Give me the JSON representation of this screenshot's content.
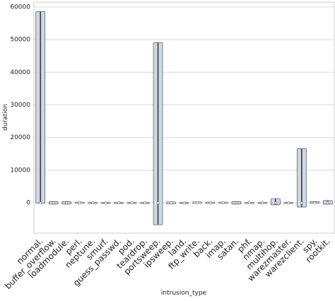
{
  "chart_data": {
    "type": "violin",
    "xlabel": "intrusion_type",
    "ylabel": "duration",
    "categories": [
      "normal.",
      "buffer_overflow.",
      "loadmodule.",
      "perl.",
      "neptune.",
      "smurf.",
      "guess_passwd.",
      "pod.",
      "teardrop.",
      "portsweep.",
      "ipsweep.",
      "land.",
      "ftp_write.",
      "back.",
      "imap.",
      "satan.",
      "phf.",
      "nmap.",
      "multihop.",
      "warezmaster.",
      "warezclient.",
      "spy.",
      "rootkit."
    ],
    "min": [
      0,
      -300,
      -300,
      -100,
      0,
      0,
      0,
      0,
      0,
      -6600,
      -200,
      0,
      -100,
      -100,
      -100,
      -300,
      0,
      0,
      -500,
      0,
      -1200,
      0,
      -300
    ],
    "max": [
      58500,
      300,
      300,
      100,
      0,
      0,
      0,
      0,
      0,
      49000,
      200,
      0,
      200,
      100,
      100,
      300,
      0,
      0,
      1200,
      0,
      16500,
      300,
      600
    ],
    "median": [
      0,
      0,
      0,
      0,
      0,
      0,
      0,
      0,
      0,
      0,
      0,
      0,
      0,
      0,
      0,
      0,
      0,
      0,
      0,
      0,
      0,
      0,
      0
    ],
    "color": "#3a3a3a",
    "ylim": [
      -9300,
      61500
    ],
    "yticks": [
      0,
      10000,
      20000,
      30000,
      40000,
      50000,
      60000
    ],
    "grid": true
  }
}
